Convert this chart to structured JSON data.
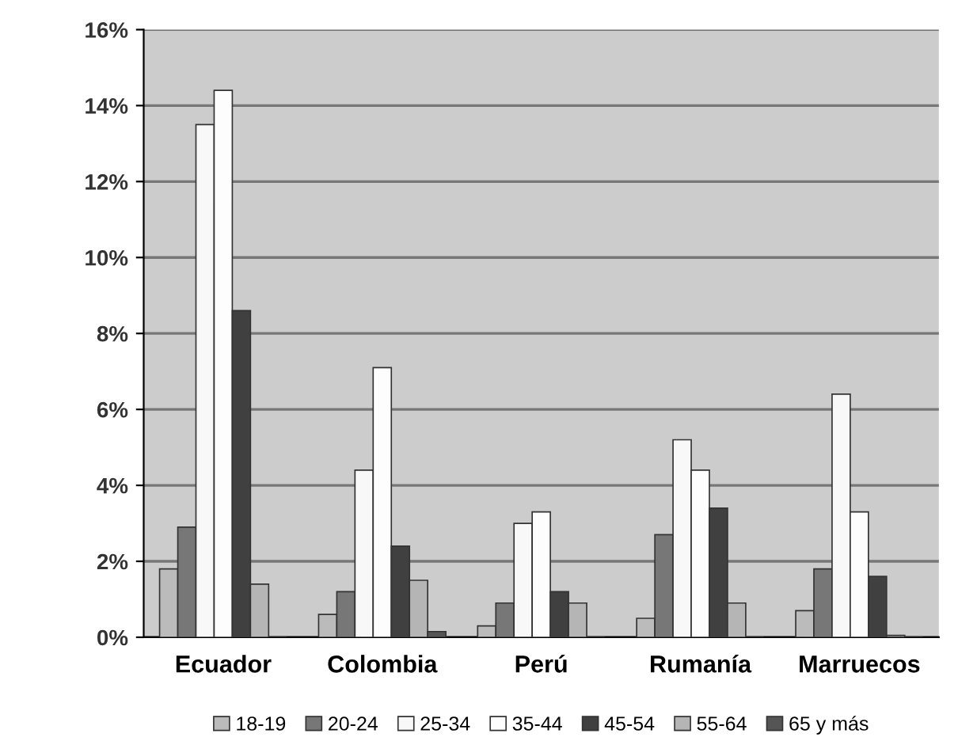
{
  "chart_data": {
    "type": "bar",
    "categories": [
      "Ecuador",
      "Colombia",
      "Perú",
      "Rumanía",
      "Marruecos"
    ],
    "series": [
      {
        "name": "18-19",
        "color": "#bbbbbb",
        "values": [
          1.8,
          0.6,
          0.3,
          0.5,
          0.7
        ]
      },
      {
        "name": "20-24",
        "color": "#777777",
        "values": [
          2.9,
          1.2,
          0.9,
          2.7,
          1.8
        ]
      },
      {
        "name": "25-34",
        "color": "#f8f8f8",
        "values": [
          13.5,
          4.4,
          3.0,
          5.2,
          6.4
        ]
      },
      {
        "name": "35-44",
        "color": "#fdfdfd",
        "values": [
          14.4,
          7.1,
          3.3,
          4.4,
          3.3
        ]
      },
      {
        "name": "45-54",
        "color": "#404040",
        "values": [
          8.6,
          2.4,
          1.2,
          3.4,
          1.6
        ]
      },
      {
        "name": "55-64",
        "color": "#b5b5b5",
        "values": [
          1.4,
          1.5,
          0.9,
          0.9,
          0.05
        ]
      },
      {
        "name": "65 y más",
        "color": "#555555",
        "values": [
          null,
          0.15,
          null,
          null,
          null
        ]
      }
    ],
    "ylim": [
      0,
      16
    ],
    "yticks": [
      {
        "value": 0,
        "label": "0%"
      },
      {
        "value": 2,
        "label": "2%"
      },
      {
        "value": 4,
        "label": "4%"
      },
      {
        "value": 6,
        "label": "6%"
      },
      {
        "value": 8,
        "label": "8%"
      },
      {
        "value": 10,
        "label": "10%"
      },
      {
        "value": 12,
        "label": "12%"
      },
      {
        "value": 14,
        "label": "14%"
      },
      {
        "value": 16,
        "label": "16%"
      }
    ],
    "grid": "y",
    "legend": "bottom"
  }
}
